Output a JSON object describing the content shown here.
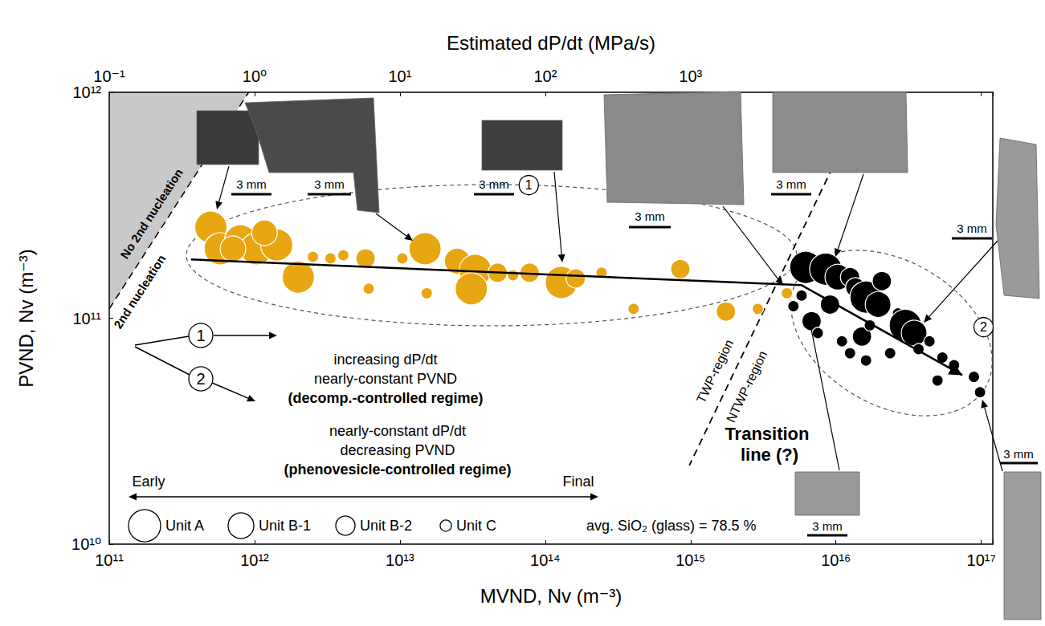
{
  "chart_data": {
    "type": "scatter",
    "x_label": "MVND, Nv (m⁻³)",
    "y_label": "PVND, Nv (m⁻³)",
    "x2_label": "Estimated dP/dt (MPa/s)",
    "log": true,
    "grid": false,
    "xlim": [
      100000000000.0,
      1.2e+17
    ],
    "xticks": [
      {
        "value": 100000000000.0,
        "label": "10¹¹"
      },
      {
        "value": 1000000000000.0,
        "label": "10¹²"
      },
      {
        "value": 10000000000000.0,
        "label": "10¹³"
      },
      {
        "value": 100000000000000.0,
        "label": "10¹⁴"
      },
      {
        "value": 1000000000000000.0,
        "label": "10¹⁵"
      },
      {
        "value": 1e+16,
        "label": "10¹⁶"
      },
      {
        "value": 1e+17,
        "label": "10¹⁷"
      }
    ],
    "ylim": [
      10000000000.0,
      1000000000000.0
    ],
    "yticks": [
      {
        "value": 10000000000.0,
        "label": "10¹⁰"
      },
      {
        "value": 100000000000.0,
        "label": "10¹¹"
      },
      {
        "value": 1000000000000.0,
        "label": "10¹²"
      }
    ],
    "x2lim": [
      0.1,
      120000
    ],
    "x2ticks": [
      {
        "value": 0.1,
        "label": "10⁻¹"
      },
      {
        "value": 1,
        "label": "10⁰"
      },
      {
        "value": 10,
        "label": "10¹"
      },
      {
        "value": 100,
        "label": "10²"
      },
      {
        "value": 1000,
        "label": "10³"
      }
    ],
    "units": [
      "Unit A",
      "Unit B-1",
      "Unit B-2",
      "Unit C"
    ],
    "series": [
      {
        "label": "1",
        "color": "#e8a712",
        "marker": "circle",
        "x": [
          500000000000.0,
          580000000000.0,
          800000000000.0,
          1030000000000.0,
          1420000000000.0,
          2000000000000.0,
          1170000000000.0,
          710000000000.0,
          2520000000000.0,
          3330000000000.0,
          4080000000000.0,
          5800000000000.0,
          6100000000000.0,
          10400000000000.0,
          14900000000000.0,
          24800000000000.0,
          33000000000000.0,
          31000000000000.0,
          47000000000000.0,
          60000000000000.0,
          78000000000000.0,
          129000000000000.0,
          162000000000000.0,
          244000000000000.0,
          405000000000000.0,
          850000000000000.0,
          1750000000000000.0,
          2900000000000000.0,
          4600000000000000.0,
          15300000000000.0
        ],
        "values": [
          253000000000.0,
          203000000000.0,
          220000000000.0,
          203000000000.0,
          211000000000.0,
          152000000000.0,
          239000000000.0,
          203000000000.0,
          187000000000.0,
          184000000000.0,
          190000000000.0,
          184000000000.0,
          135000000000.0,
          184000000000.0,
          203000000000.0,
          179000000000.0,
          163000000000.0,
          135000000000.0,
          159000000000.0,
          155000000000.0,
          159000000000.0,
          144000000000.0,
          150000000000.0,
          159000000000.0,
          110000000000.0,
          165000000000.0,
          107000000000.0,
          110000000000.0,
          129000000000.0,
          129000000000.0
        ],
        "unit": [
          "Unit A",
          "Unit A",
          "Unit A",
          "Unit A",
          "Unit A",
          "Unit A",
          "Unit B-1",
          "Unit B-1",
          "Unit C",
          "Unit C",
          "Unit C",
          "Unit B-2",
          "Unit C",
          "Unit C",
          "Unit A",
          "Unit B-1",
          "Unit A",
          "Unit A",
          "Unit B-2",
          "Unit C",
          "Unit B-2",
          "Unit A",
          "Unit B-2",
          "Unit C",
          "Unit C",
          "Unit B-2",
          "Unit B-2",
          "Unit C",
          "Unit C",
          "Unit C"
        ]
      },
      {
        "label": "2",
        "color": "#000000",
        "marker": "circle",
        "x": [
          5800000000000000.0,
          5100000000000000.0,
          6200000000000000.0,
          8500000000000000.0,
          1.03e+16,
          1.25e+16,
          1.36e+16,
          1.61e+16,
          1.95e+16,
          2.07e+16,
          9100000000000000.0,
          6800000000000000.0,
          7500000000000000.0,
          1.1e+16,
          1.51e+16,
          1.71e+16,
          2.67e+16,
          3e+16,
          3.45e+16,
          4.4e+16,
          3.7e+16,
          5.4e+16,
          2.36e+16,
          1.61e+16,
          1.25e+16,
          5e+16,
          8.9e+16,
          9.8e+16,
          6.5e+16
        ],
        "values": [
          126000000000.0,
          113000000000.0,
          168000000000.0,
          165000000000.0,
          152000000000.0,
          152000000000.0,
          137000000000.0,
          124000000000.0,
          115000000000.0,
          146000000000.0,
          115000000000.0,
          97000000000.0,
          86000000000.0,
          79000000000.0,
          83000000000.0,
          93000000000.0,
          105000000000.0,
          93000000000.0,
          86000000000.0,
          79000000000.0,
          73000000000.0,
          67000000000.0,
          70000000000.0,
          65000000000.0,
          70000000000.0,
          53000000000.0,
          55000000000.0,
          47000000000.0,
          62000000000.0
        ],
        "unit": [
          "Unit C",
          "Unit C",
          "Unit A",
          "Unit A",
          "Unit B-1",
          "Unit B-2",
          "Unit B-2",
          "Unit A",
          "Unit B-1",
          "Unit B-2",
          "Unit B-2",
          "Unit B-2",
          "Unit C",
          "Unit C",
          "Unit B-2",
          "Unit C",
          "Unit C",
          "Unit A",
          "Unit B-1",
          "Unit C",
          "Unit C",
          "Unit C",
          "Unit C",
          "Unit C",
          "Unit C",
          "Unit C",
          "Unit C",
          "Unit C",
          "Unit C"
        ]
      }
    ],
    "trend": {
      "x": [
        365000000000.0,
        5800000000000000.0,
        7.4e+16
      ],
      "values": [
        182000000000.0,
        140000000000.0,
        56000000000.0
      ],
      "line_style": "solid"
    },
    "nucleation_boundary": {
      "x": [
        100000000000.0,
        910000000000.0
      ],
      "values": [
        110000000000.0,
        1000000000000.0
      ],
      "line_style": "dashed",
      "above": "No 2nd nucleation",
      "below": "2nd nucleation"
    },
    "transition_line": {
      "x": [
        1.03e+16,
        980000000000000.0
      ],
      "values": [
        520000000000.0,
        22300000000.0
      ],
      "line_style": "dashed",
      "label": "Transition line (?)",
      "left": "TWP-region",
      "right": "NTWP-region"
    },
    "regimes": [
      {
        "label": "1",
        "lines": [
          "increasing dP/dt",
          "nearly-constant PVND",
          "(decomp.-controlled regime)"
        ]
      },
      {
        "label": "2",
        "lines": [
          "nearly-constant dP/dt",
          "decreasing PVND",
          "(phenovesicle-controlled regime)"
        ]
      }
    ],
    "time_arrow": {
      "start": "Early",
      "end": "Final"
    },
    "note": "avg. SiO₂ (glass) = 78.5 %",
    "sample_images": [
      {
        "scale_bar": "3 mm"
      },
      {
        "scale_bar": "3 mm"
      },
      {
        "scale_bar": "3 mm"
      },
      {
        "scale_bar": "3 mm"
      },
      {
        "scale_bar": "3 mm"
      },
      {
        "scale_bar": "3 mm"
      },
      {
        "scale_bar": "3 mm"
      },
      {
        "scale_bar": "3 mm"
      }
    ]
  }
}
